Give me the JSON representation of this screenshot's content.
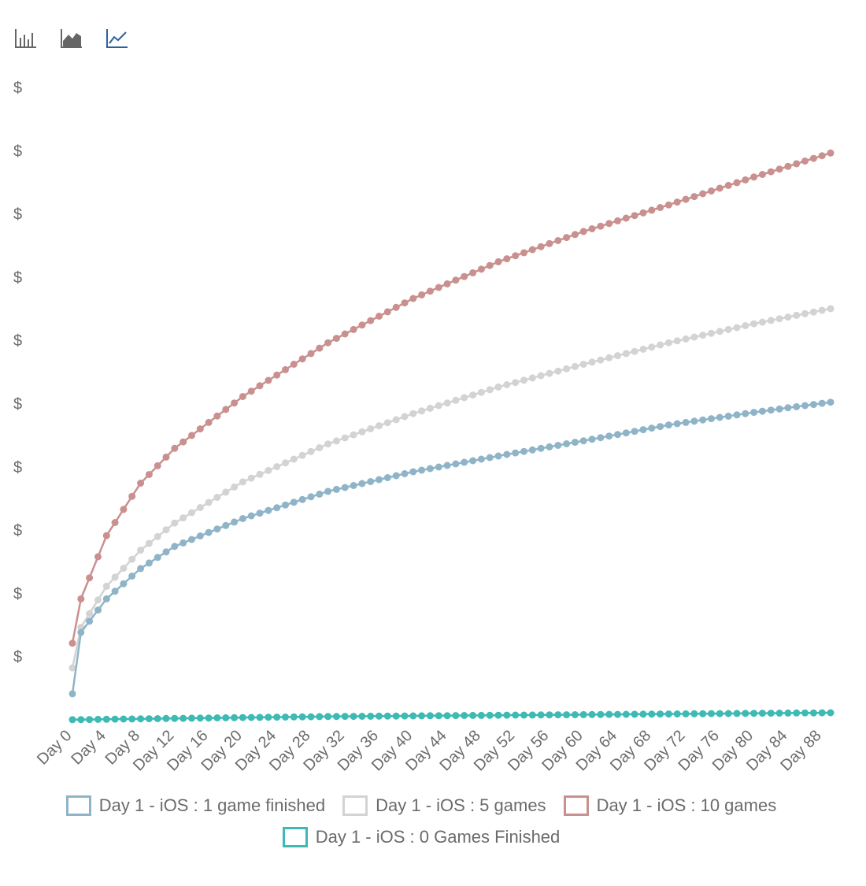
{
  "toolbar": {
    "buttons": [
      {
        "name": "bar-chart-icon",
        "color": "#666666"
      },
      {
        "name": "area-chart-icon",
        "color": "#666666"
      },
      {
        "name": "line-chart-icon",
        "color": "#2f5f9a"
      }
    ]
  },
  "chart_data": {
    "type": "line",
    "title": "",
    "xlabel": "",
    "ylabel": "",
    "y_tick_labels": [
      "$",
      "$",
      "$",
      "$",
      "$",
      "$",
      "$",
      "$",
      "$",
      "$"
    ],
    "x_tick_labels": [
      "Day 0",
      "Day 4",
      "Day 8",
      "Day 12",
      "Day 16",
      "Day 20",
      "Day 24",
      "Day 28",
      "Day 32",
      "Day 36",
      "Day 40",
      "Day 44",
      "Day 48",
      "Day 52",
      "Day 56",
      "Day 60",
      "Day 64",
      "Day 68",
      "Day 72",
      "Day 76",
      "Day 80",
      "Day 84",
      "Day 88"
    ],
    "x_range": [
      0,
      89
    ],
    "ylim": [
      0,
      10
    ],
    "grid": false,
    "legend_position": "bottom",
    "series": [
      {
        "name": "Day 1 - iOS : 1 game finished",
        "color": "#8fb4c8",
        "keypoints": [
          [
            0,
            0.35
          ],
          [
            1,
            1.32
          ],
          [
            4,
            1.85
          ],
          [
            8,
            2.33
          ],
          [
            12,
            2.68
          ],
          [
            20,
            3.12
          ],
          [
            30,
            3.55
          ],
          [
            40,
            3.86
          ],
          [
            50,
            4.11
          ],
          [
            60,
            4.35
          ],
          [
            70,
            4.6
          ],
          [
            80,
            4.8
          ],
          [
            89,
            4.96
          ]
        ]
      },
      {
        "name": "Day 1 - iOS : 5 games",
        "color": "#d3d3d3",
        "keypoints": [
          [
            0,
            0.76
          ],
          [
            1,
            1.4
          ],
          [
            4,
            2.05
          ],
          [
            8,
            2.62
          ],
          [
            12,
            3.05
          ],
          [
            20,
            3.7
          ],
          [
            30,
            4.3
          ],
          [
            40,
            4.78
          ],
          [
            50,
            5.2
          ],
          [
            60,
            5.56
          ],
          [
            70,
            5.9
          ],
          [
            80,
            6.2
          ],
          [
            89,
            6.44
          ]
        ]
      },
      {
        "name": "Day 1 - iOS : 10 games",
        "color": "#c9908f",
        "keypoints": [
          [
            0,
            1.15
          ],
          [
            1,
            1.85
          ],
          [
            4,
            2.85
          ],
          [
            8,
            3.68
          ],
          [
            12,
            4.23
          ],
          [
            20,
            5.05
          ],
          [
            30,
            5.9
          ],
          [
            40,
            6.6
          ],
          [
            50,
            7.18
          ],
          [
            60,
            7.66
          ],
          [
            70,
            8.08
          ],
          [
            80,
            8.52
          ],
          [
            89,
            8.9
          ]
        ]
      },
      {
        "name": "Day 1 - iOS : 0 Games Finished",
        "color": "#3dbab3",
        "keypoints": [
          [
            0,
            -0.06
          ],
          [
            30,
            -0.01
          ],
          [
            60,
            0.02
          ],
          [
            89,
            0.05
          ]
        ]
      }
    ]
  }
}
